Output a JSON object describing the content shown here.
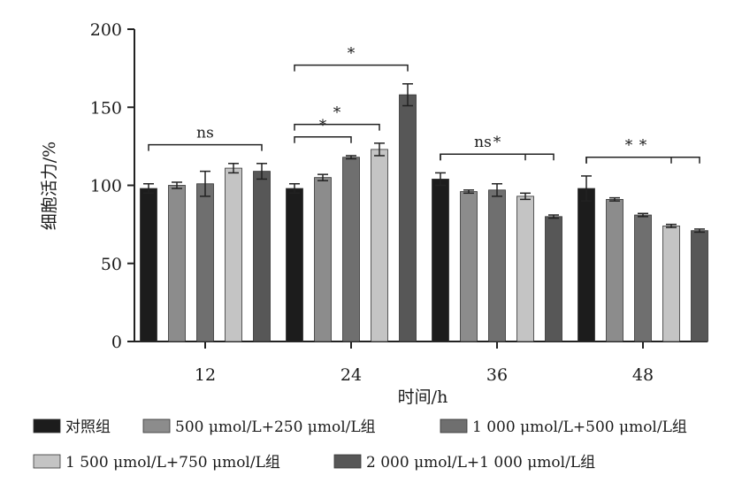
{
  "chart_data": {
    "type": "bar",
    "categories": [
      "12",
      "24",
      "36",
      "48"
    ],
    "xlabel": "时间/h",
    "ylabel": "细胞活力/%",
    "ylim": [
      0,
      200
    ],
    "yticks": [
      "0",
      "50",
      "100",
      "150",
      "200"
    ],
    "grid": false,
    "legend_position": "bottom",
    "error_bars": true,
    "series": [
      {
        "name": "对照组",
        "color": "#1c1c1c",
        "values": [
          98,
          98,
          104,
          98
        ],
        "errors": [
          3,
          3,
          4,
          8
        ]
      },
      {
        "name": "500 μmol/L+250 μmol/L组",
        "color": "#8c8c8c",
        "values": [
          100,
          105,
          96,
          91
        ],
        "errors": [
          2,
          2,
          1,
          1
        ]
      },
      {
        "name": "1 000 μmol/L+500 μmol/L组",
        "color": "#6f6f6f",
        "values": [
          101,
          118,
          97,
          81
        ],
        "errors": [
          8,
          1,
          4,
          1
        ]
      },
      {
        "name": "1 500 μmol/L+750 μmol/L组",
        "color": "#c4c4c4",
        "values": [
          111,
          123,
          93,
          74
        ],
        "errors": [
          3,
          4,
          2,
          1
        ]
      },
      {
        "name": "2 000 μmol/L+1 000 μmol/L组",
        "color": "#575757",
        "values": [
          109,
          158,
          80,
          71
        ],
        "errors": [
          5,
          7,
          1,
          1
        ]
      }
    ],
    "significance": [
      {
        "category": 0,
        "from": 0,
        "to": 4,
        "label": "ns"
      },
      {
        "category": 1,
        "from": 0,
        "to": 2,
        "label": "*"
      },
      {
        "category": 1,
        "from": 0,
        "to": 3,
        "label": "*"
      },
      {
        "category": 1,
        "from": 0,
        "to": 4,
        "label": "*"
      },
      {
        "category": 2,
        "from": 0,
        "to": 3,
        "label": "ns"
      },
      {
        "category": 2,
        "from": 0,
        "to": 4,
        "label": "*"
      },
      {
        "category": 3,
        "from": 0,
        "to": 3,
        "label": "*"
      },
      {
        "category": 3,
        "from": 0,
        "to": 4,
        "label": "*"
      }
    ]
  }
}
